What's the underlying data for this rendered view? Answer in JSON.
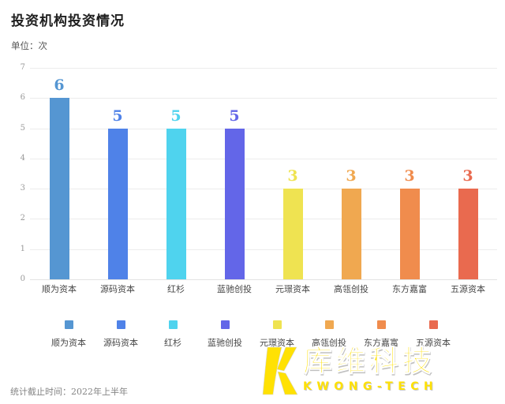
{
  "page": {
    "title": "投资机构投资情况",
    "unit_label": "单位：次",
    "footnote": "统计截止时间：2022年上半年"
  },
  "chart_data": {
    "type": "bar",
    "title": "投资机构投资情况",
    "ylabel": "单位：次",
    "categories": [
      "顺为资本",
      "源码资本",
      "红杉",
      "蓝驰创投",
      "元璟资本",
      "高瓴创投",
      "东方嘉富",
      "五源资本"
    ],
    "values": [
      6,
      5,
      5,
      5,
      3,
      3,
      3,
      3
    ],
    "bar_colors": [
      "#5596d2",
      "#4f82e8",
      "#4fd3ee",
      "#6366e8",
      "#efe351",
      "#f0a850",
      "#f08c4d",
      "#e96a4f"
    ],
    "value_label_colors": [
      "#5596d2",
      "#4f82e8",
      "#4fd3ee",
      "#6366e8",
      "#efe351",
      "#f0a850",
      "#f08c4d",
      "#e96a4f"
    ],
    "ylim": [
      0,
      7
    ],
    "yticks": [
      0,
      1,
      2,
      3,
      4,
      5,
      6,
      7
    ],
    "grid": true,
    "legend_position": "bottom",
    "value_labels_shown": true
  },
  "legend": {
    "items": [
      {
        "label": "顺为资本",
        "color": "#5596d2"
      },
      {
        "label": "源码资本",
        "color": "#4f82e8"
      },
      {
        "label": "红杉",
        "color": "#4fd3ee"
      },
      {
        "label": "蓝驰创投",
        "color": "#6366e8"
      },
      {
        "label": "元璟资本",
        "color": "#efe351"
      },
      {
        "label": "高瓴创投",
        "color": "#f0a850"
      },
      {
        "label": "东方嘉富",
        "color": "#f08c4d"
      },
      {
        "label": "五源资本",
        "color": "#e96a4f"
      }
    ]
  },
  "logo": {
    "name_cn": "库维科技",
    "name_en": "KWONG-TECH",
    "brand_color": "#ffe103"
  }
}
